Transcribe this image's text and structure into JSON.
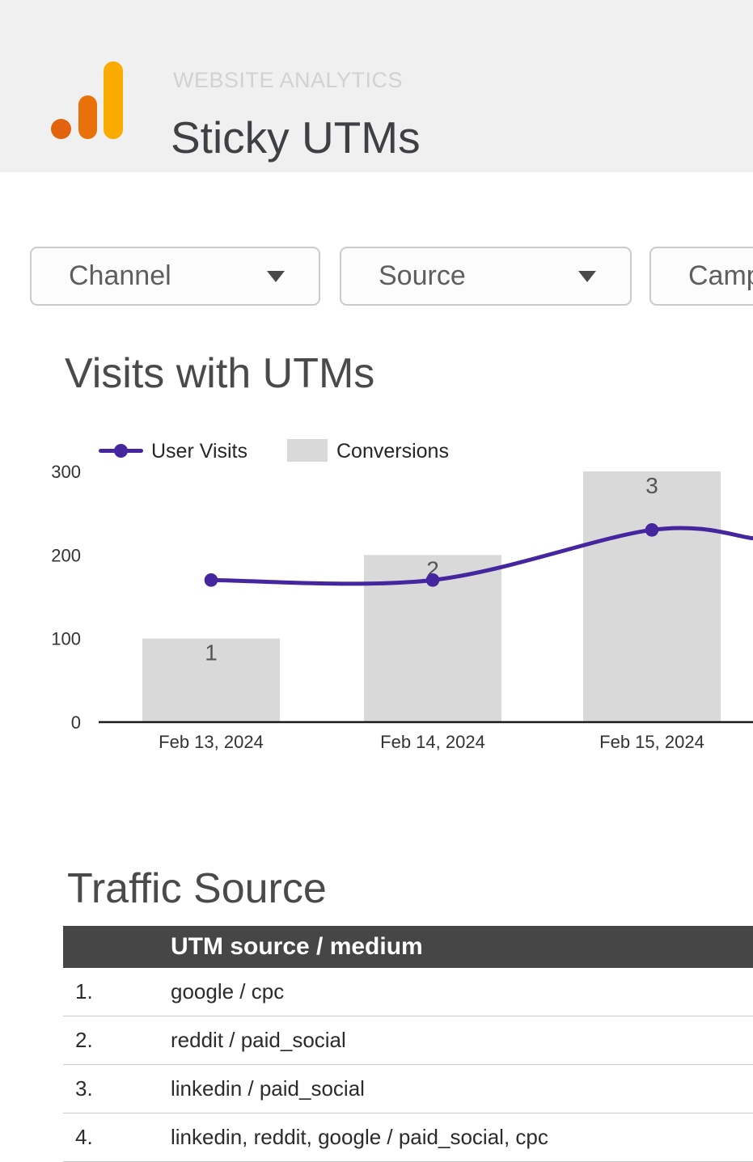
{
  "header": {
    "eyebrow": "WEBSITE ANALYTICS",
    "title": "Sticky UTMs",
    "logo": {
      "name": "analytics-bars-logo",
      "dot_color": "#e2620d",
      "mid_bar_color": "#e8710a",
      "tall_bar_color": "#f9ab00"
    },
    "background_color": "#f0f0f1"
  },
  "filters": [
    {
      "label": "Channel"
    },
    {
      "label": "Source"
    },
    {
      "label": "Campaign"
    }
  ],
  "chart": {
    "title": "Visits with UTMs",
    "legend": [
      {
        "name": "User Visits",
        "type": "line",
        "color": "#46269e"
      },
      {
        "name": "Conversions",
        "type": "bar",
        "color": "#d9d9d9"
      }
    ],
    "chart_data": {
      "type": "line+bar combo",
      "categories": [
        "Feb 13, 2024",
        "Feb 14, 2024",
        "Feb 15, 2024"
      ],
      "series": [
        {
          "name": "User Visits",
          "type": "line",
          "color": "#46269e",
          "axis": "left",
          "values": [
            170,
            170,
            230
          ],
          "continues_past_right_edge": true,
          "edge_value": 220
        },
        {
          "name": "Conversions",
          "type": "bar",
          "color": "#d9d9d9",
          "axis": "hidden-right",
          "values": [
            1,
            2,
            3
          ],
          "bar_heights_on_left_axis": [
            100,
            200,
            300
          ],
          "data_labels_shown": true
        }
      ],
      "title": "Visits with UTMs",
      "xlabel": "",
      "ylabel": "",
      "ylim": [
        0,
        300
      ],
      "yticks": [
        0,
        100,
        200,
        300
      ],
      "grid": false,
      "legend_position": "top-left",
      "axis_color": "#1b1b1b",
      "tick_label_color": "#333333",
      "bar_label_color": "#555555"
    }
  },
  "traffic": {
    "title": "Traffic Source",
    "table": {
      "header": {
        "source_medium": "UTM source / medium"
      },
      "header_bg": "#464646",
      "rows": [
        {
          "rank": "1.",
          "value": "google / cpc"
        },
        {
          "rank": "2.",
          "value": "reddit / paid_social"
        },
        {
          "rank": "3.",
          "value": "linkedin / paid_social"
        },
        {
          "rank": "4.",
          "value": "linkedin, reddit, google / paid_social, cpc"
        }
      ]
    }
  }
}
